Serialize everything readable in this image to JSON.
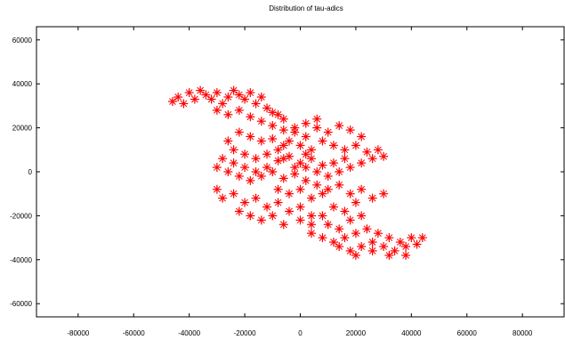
{
  "chart_data": {
    "type": "scatter",
    "title": "Distribution of tau-adics",
    "xlabel": "",
    "ylabel": "",
    "xlim": [
      -95000,
      95000
    ],
    "ylim": [
      -66000,
      66000
    ],
    "x_ticks": [
      -80000,
      -60000,
      -40000,
      -20000,
      0,
      20000,
      40000,
      60000,
      80000
    ],
    "y_ticks": [
      -60000,
      -40000,
      -20000,
      0,
      20000,
      40000,
      60000
    ],
    "x_tick_labels": [
      "-80000",
      "-60000",
      "-40000",
      "-20000",
      "0",
      "20000",
      "40000",
      "60000",
      "80000"
    ],
    "y_tick_labels": [
      "-60000",
      "-40000",
      "-20000",
      "0",
      "20000",
      "40000",
      "60000"
    ],
    "grid": false,
    "legend": "none",
    "marker": "plus",
    "marker_color": "#ff0000",
    "series": [
      {
        "values": [
          [
            -46000,
            32000
          ],
          [
            -44000,
            34000
          ],
          [
            -42000,
            31000
          ],
          [
            -40000,
            36000
          ],
          [
            -38000,
            33000
          ],
          [
            -36000,
            37000
          ],
          [
            -34000,
            35000
          ],
          [
            -32000,
            33000
          ],
          [
            -30000,
            36000
          ],
          [
            -28000,
            31000
          ],
          [
            -26000,
            34000
          ],
          [
            -24000,
            37000
          ],
          [
            -22000,
            35000
          ],
          [
            -20000,
            33000
          ],
          [
            -18000,
            36000
          ],
          [
            -16000,
            31000
          ],
          [
            -14000,
            34000
          ],
          [
            -12000,
            29000
          ],
          [
            -10000,
            27000
          ],
          [
            -8000,
            26000
          ],
          [
            -6000,
            24000
          ],
          [
            -30000,
            28000
          ],
          [
            -26000,
            26000
          ],
          [
            -22000,
            28000
          ],
          [
            -18000,
            25000
          ],
          [
            -14000,
            23000
          ],
          [
            -10000,
            21000
          ],
          [
            -6000,
            19000
          ],
          [
            -2000,
            18000
          ],
          [
            2000,
            16000
          ],
          [
            -22000,
            18000
          ],
          [
            -18000,
            16000
          ],
          [
            -14000,
            14000
          ],
          [
            -10000,
            15000
          ],
          [
            -6000,
            12000
          ],
          [
            -26000,
            14000
          ],
          [
            -24000,
            10000
          ],
          [
            -20000,
            8000
          ],
          [
            -16000,
            6000
          ],
          [
            -12000,
            8000
          ],
          [
            -8000,
            5000
          ],
          [
            -4000,
            7000
          ],
          [
            0,
            4000
          ],
          [
            4000,
            6000
          ],
          [
            8000,
            3000
          ],
          [
            -28000,
            6000
          ],
          [
            -30000,
            2000
          ],
          [
            -26000,
            0
          ],
          [
            -22000,
            -2000
          ],
          [
            -18000,
            -4000
          ],
          [
            -14000,
            -2000
          ],
          [
            -10000,
            0
          ],
          [
            -6000,
            -3000
          ],
          [
            -2000,
            -1000
          ],
          [
            2000,
            -4000
          ],
          [
            -30000,
            -8000
          ],
          [
            -28000,
            -12000
          ],
          [
            -24000,
            -10000
          ],
          [
            -20000,
            -14000
          ],
          [
            -16000,
            -12000
          ],
          [
            -12000,
            -16000
          ],
          [
            -8000,
            -14000
          ],
          [
            -4000,
            -18000
          ],
          [
            0,
            -16000
          ],
          [
            4000,
            -20000
          ],
          [
            -22000,
            -18000
          ],
          [
            -18000,
            -20000
          ],
          [
            -14000,
            -22000
          ],
          [
            -10000,
            -20000
          ],
          [
            -6000,
            -24000
          ],
          [
            6000,
            20000
          ],
          [
            10000,
            18000
          ],
          [
            14000,
            21000
          ],
          [
            18000,
            19000
          ],
          [
            22000,
            16000
          ],
          [
            8000,
            14000
          ],
          [
            12000,
            12000
          ],
          [
            16000,
            10000
          ],
          [
            20000,
            12000
          ],
          [
            24000,
            9000
          ],
          [
            26000,
            6000
          ],
          [
            28000,
            10000
          ],
          [
            30000,
            7000
          ],
          [
            22000,
            4000
          ],
          [
            18000,
            2000
          ],
          [
            14000,
            0
          ],
          [
            10000,
            -2000
          ],
          [
            6000,
            0
          ],
          [
            12000,
            4000
          ],
          [
            16000,
            6000
          ],
          [
            4000,
            10000
          ],
          [
            0,
            12000
          ],
          [
            -4000,
            14000
          ],
          [
            2000,
            8000
          ],
          [
            -2000,
            2000
          ],
          [
            6000,
            -6000
          ],
          [
            10000,
            -8000
          ],
          [
            14000,
            -6000
          ],
          [
            18000,
            -10000
          ],
          [
            22000,
            -8000
          ],
          [
            26000,
            -12000
          ],
          [
            30000,
            -10000
          ],
          [
            20000,
            -14000
          ],
          [
            16000,
            -18000
          ],
          [
            12000,
            -16000
          ],
          [
            8000,
            -20000
          ],
          [
            4000,
            -24000
          ],
          [
            0,
            -22000
          ],
          [
            10000,
            -24000
          ],
          [
            14000,
            -26000
          ],
          [
            18000,
            -22000
          ],
          [
            22000,
            -20000
          ],
          [
            24000,
            -26000
          ],
          [
            20000,
            -28000
          ],
          [
            16000,
            -30000
          ],
          [
            12000,
            -32000
          ],
          [
            8000,
            -30000
          ],
          [
            4000,
            -28000
          ],
          [
            14000,
            -34000
          ],
          [
            18000,
            -36000
          ],
          [
            22000,
            -34000
          ],
          [
            26000,
            -32000
          ],
          [
            28000,
            -28000
          ],
          [
            30000,
            -34000
          ],
          [
            32000,
            -30000
          ],
          [
            34000,
            -36000
          ],
          [
            36000,
            -32000
          ],
          [
            38000,
            -34000
          ],
          [
            40000,
            -30000
          ],
          [
            42000,
            -33000
          ],
          [
            44000,
            -30000
          ],
          [
            38000,
            -38000
          ],
          [
            32000,
            -38000
          ],
          [
            26000,
            -36000
          ],
          [
            20000,
            -38000
          ],
          [
            -8000,
            -8000
          ],
          [
            -4000,
            -10000
          ],
          [
            0,
            -8000
          ],
          [
            4000,
            -12000
          ],
          [
            8000,
            -10000
          ],
          [
            -12000,
            2000
          ],
          [
            -16000,
            0
          ],
          [
            -20000,
            2000
          ],
          [
            -24000,
            4000
          ],
          [
            -8000,
            10000
          ],
          [
            2000,
            22000
          ],
          [
            6000,
            24000
          ],
          [
            -2000,
            20000
          ],
          [
            -6000,
            6000
          ],
          [
            2000,
            2000
          ]
        ]
      }
    ]
  }
}
